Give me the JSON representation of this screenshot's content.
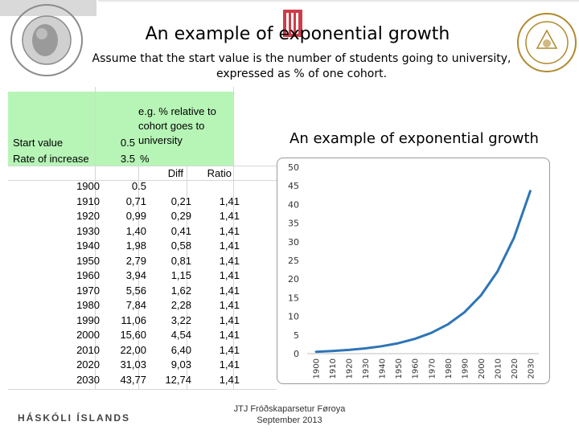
{
  "title": "An example of exponential growth",
  "subtitle": "Assume that the start value is the number of students going to university, expressed as % of one cohort.",
  "sheet": {
    "start_label": "Start value",
    "start_value": "0.5",
    "rate_label": "Rate of increase",
    "rate_value": "3.5",
    "rate_unit": "%",
    "note": "e.g. % relative to cohort goes to university",
    "header_diff": "Diff",
    "header_ratio": "Ratio",
    "rows": [
      {
        "year": "1900",
        "value": "0.5",
        "diff": "",
        "ratio": ""
      },
      {
        "year": "1910",
        "value": "0,71",
        "diff": "0,21",
        "ratio": "1,41"
      },
      {
        "year": "1920",
        "value": "0,99",
        "diff": "0,29",
        "ratio": "1,41"
      },
      {
        "year": "1930",
        "value": "1,40",
        "diff": "0,41",
        "ratio": "1,41"
      },
      {
        "year": "1940",
        "value": "1,98",
        "diff": "0,58",
        "ratio": "1,41"
      },
      {
        "year": "1950",
        "value": "2,79",
        "diff": "0,81",
        "ratio": "1,41"
      },
      {
        "year": "1960",
        "value": "3,94",
        "diff": "1,15",
        "ratio": "1,41"
      },
      {
        "year": "1970",
        "value": "5,56",
        "diff": "1,62",
        "ratio": "1,41"
      },
      {
        "year": "1980",
        "value": "7,84",
        "diff": "2,28",
        "ratio": "1,41"
      },
      {
        "year": "1990",
        "value": "11,06",
        "diff": "3,22",
        "ratio": "1,41"
      },
      {
        "year": "2000",
        "value": "15,60",
        "diff": "4,54",
        "ratio": "1,41"
      },
      {
        "year": "2010",
        "value": "22,00",
        "diff": "6,40",
        "ratio": "1,41"
      },
      {
        "year": "2020",
        "value": "31,03",
        "diff": "9,03",
        "ratio": "1,41"
      },
      {
        "year": "2030",
        "value": "43,77",
        "diff": "12,74",
        "ratio": "1,41"
      }
    ]
  },
  "chart_data": {
    "type": "line",
    "title": "An example of exponential growth",
    "x": [
      "1900",
      "1910",
      "1920",
      "1930",
      "1940",
      "1950",
      "1960",
      "1970",
      "1980",
      "1990",
      "2000",
      "2010",
      "2020",
      "2030"
    ],
    "series": [
      {
        "values": [
          0.5,
          0.71,
          0.99,
          1.4,
          1.98,
          2.79,
          3.94,
          5.56,
          7.84,
          11.06,
          15.6,
          22.0,
          31.03,
          43.77
        ]
      }
    ],
    "ylim": [
      0,
      50
    ],
    "yticks": [
      0,
      5,
      10,
      15,
      20,
      25,
      30,
      35,
      40,
      45,
      50
    ],
    "x_tick_labels": [
      "1900",
      "1910",
      "1920",
      "1930",
      "1940",
      "1950",
      "1960",
      "1970",
      "1980",
      "1990",
      "2000",
      "2010",
      "2020",
      "2030"
    ],
    "grid": false,
    "line_color": "#2e75b6"
  },
  "footer": {
    "left": "HÁSKÓLI ÍSLANDS",
    "center_line1": "JTJ Fróðskaparsetur Føroya",
    "center_line2": "September 2013"
  },
  "colors": {
    "highlight": "#b7f5b7",
    "line": "#2e75b6"
  },
  "icons": [
    "university-seal-icon",
    "crest-icon",
    "seal-icon"
  ]
}
